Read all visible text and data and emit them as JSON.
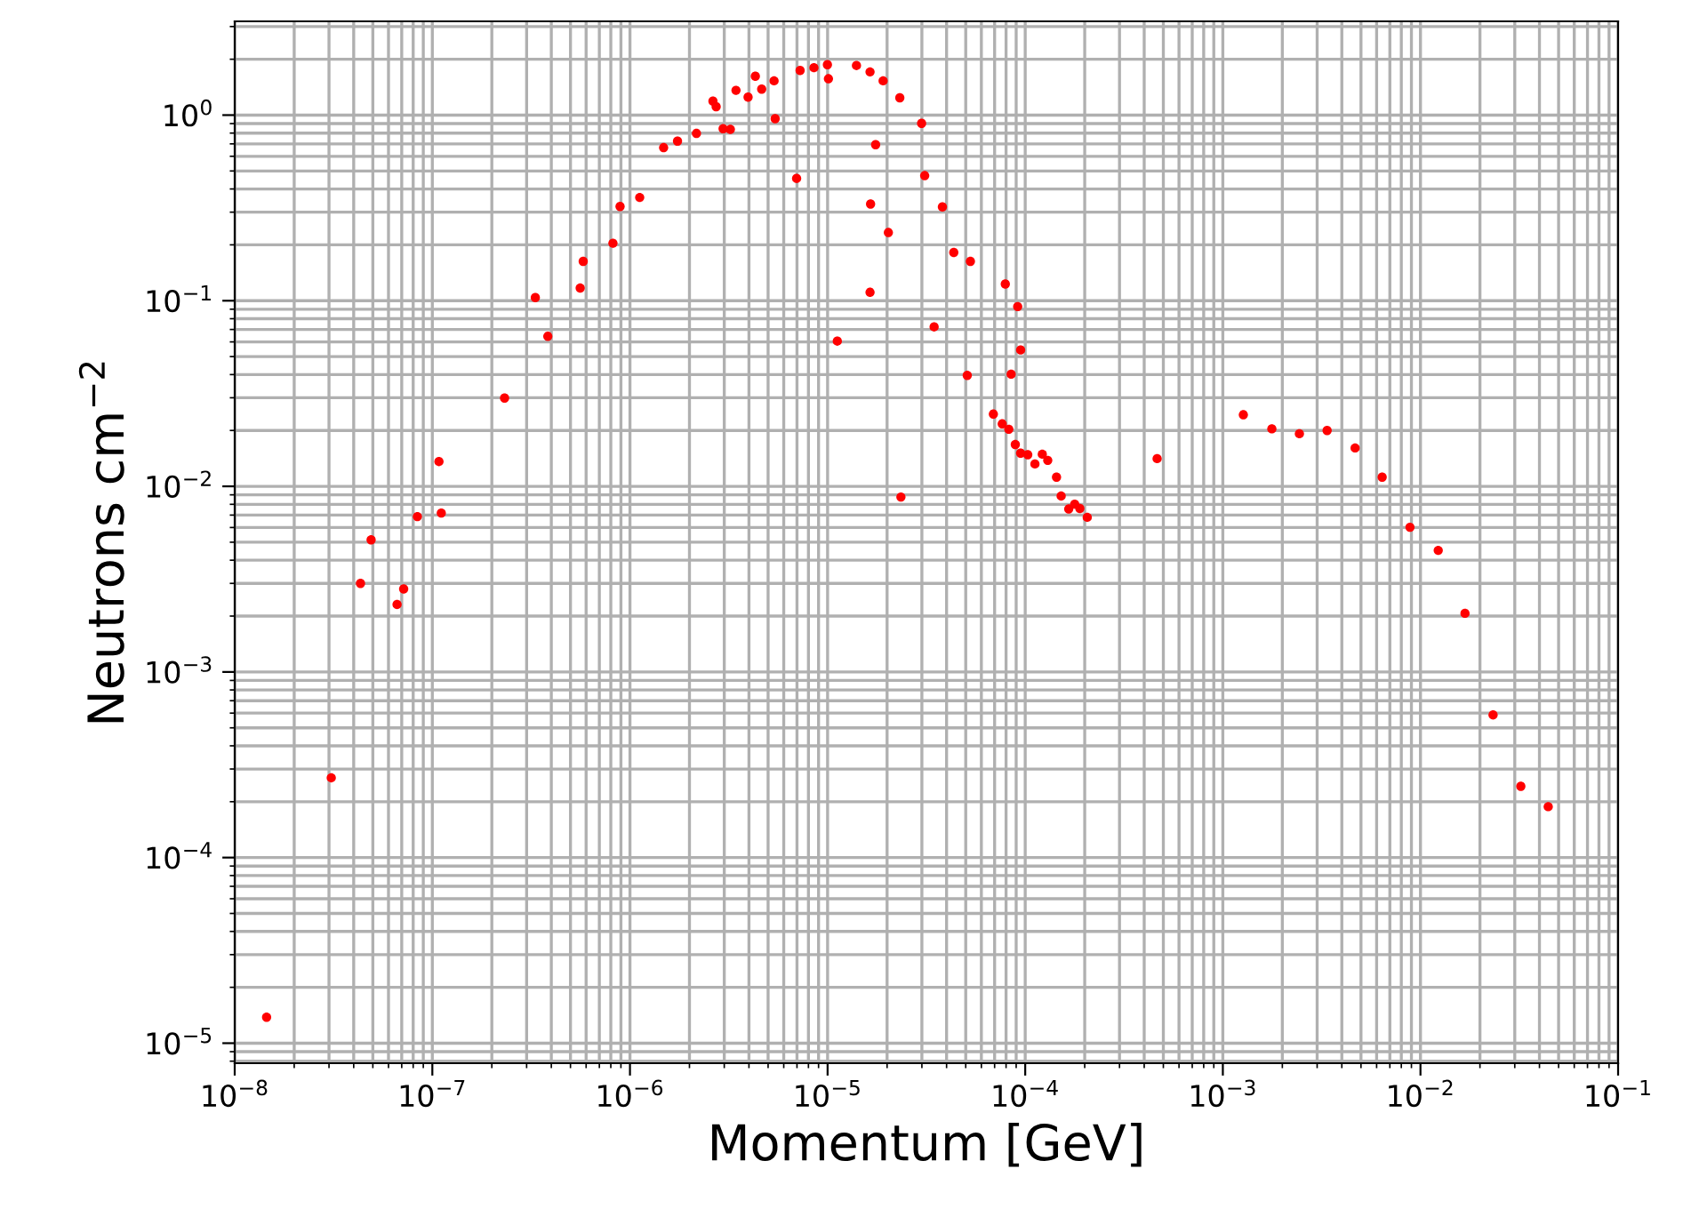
{
  "chart_data": {
    "type": "scatter",
    "xlabel": "Momentum [GeV]",
    "ylabel": "Neutrons cm$^{−2}$",
    "log": "xy",
    "grid": true,
    "marker": "circle",
    "xlim": [
      1e-08,
      0.1
    ],
    "ylim": [
      7.8e-06,
      3.2
    ],
    "xticks": [
      {
        "value": 1e-08,
        "label": "10$^{−8}$"
      },
      {
        "value": 1e-07,
        "label": "10$^{−7}$"
      },
      {
        "value": 1e-06,
        "label": "10$^{−6}$"
      },
      {
        "value": 1e-05,
        "label": "10$^{−5}$"
      },
      {
        "value": 0.0001,
        "label": "10$^{−4}$"
      },
      {
        "value": 0.001,
        "label": "10$^{−3}$"
      },
      {
        "value": 0.01,
        "label": "10$^{−2}$"
      },
      {
        "value": 0.1,
        "label": "10$^{−1}$"
      }
    ],
    "yticks": [
      {
        "value": 1e-05,
        "label": "10$^{−5}$"
      },
      {
        "value": 0.0001,
        "label": "10$^{−4}$"
      },
      {
        "value": 0.001,
        "label": "10$^{−3}$"
      },
      {
        "value": 0.01,
        "label": "10$^{−2}$"
      },
      {
        "value": 0.1,
        "label": "10$^{−1}$"
      },
      {
        "value": 1,
        "label": "10$^{0}$"
      }
    ],
    "series": [
      {
        "color": "#ff0000",
        "x": [
          1.45e-08,
          3.08e-08,
          4.33e-08,
          4.9e-08,
          6.63e-08,
          7.16e-08,
          8.4e-08,
          1.08e-07,
          1.11e-07,
          2.32e-07,
          3.32e-07,
          3.84e-07,
          5.6e-07,
          5.8e-07,
          8.2e-07,
          8.91e-07,
          1.12e-06,
          1.48e-06,
          1.74e-06,
          2.17e-06,
          2.63e-06,
          2.73e-06,
          2.96e-06,
          3.22e-06,
          3.44e-06,
          3.96e-06,
          4.31e-06,
          4.64e-06,
          5.36e-06,
          5.43e-06,
          6.97e-06,
          7.26e-06,
          8.53e-06,
          9.98e-06,
          1.01e-05,
          1.12e-05,
          1.4e-05,
          1.64e-05,
          1.91e-05,
          2.32e-05,
          2.99e-05,
          1.75e-05,
          1.65e-05,
          2.03e-05,
          1.64e-05,
          3.1e-05,
          3.81e-05,
          4.35e-05,
          5.28e-05,
          3.46e-05,
          7.93e-05,
          9.16e-05,
          9.48e-05,
          5.09e-05,
          8.49e-05,
          2.35e-05,
          6.9e-05,
          7.65e-05,
          8.26e-05,
          8.91e-05,
          9.48e-05,
          0.000103,
          0.000112,
          0.000122,
          0.00013,
          0.000144,
          0.000152,
          0.000166,
          0.000178,
          0.000189,
          0.000206,
          0.000465,
          0.00127,
          0.00177,
          0.00244,
          0.00337,
          0.00467,
          0.0064,
          0.00885,
          0.0123,
          0.0168,
          0.0233,
          0.0322,
          0.0443
        ],
        "values": [
          1.38e-05,
          0.000269,
          0.003,
          0.00515,
          0.00231,
          0.0028,
          0.00687,
          0.0136,
          0.00718,
          0.0299,
          0.104,
          0.0643,
          0.117,
          0.163,
          0.204,
          0.322,
          0.36,
          0.668,
          0.724,
          0.797,
          1.19,
          1.11,
          0.845,
          0.838,
          1.36,
          1.25,
          1.62,
          1.38,
          1.53,
          0.957,
          0.456,
          1.74,
          1.8,
          1.87,
          1.57,
          0.0606,
          1.85,
          1.71,
          1.53,
          1.24,
          0.903,
          0.693,
          0.332,
          0.233,
          0.111,
          0.472,
          0.32,
          0.182,
          0.163,
          0.0723,
          0.123,
          0.093,
          0.0543,
          0.0396,
          0.0402,
          0.00876,
          0.0245,
          0.0217,
          0.0203,
          0.0168,
          0.0151,
          0.0148,
          0.0132,
          0.0149,
          0.0138,
          0.0112,
          0.00887,
          0.00755,
          0.00802,
          0.0076,
          0.00681,
          0.0141,
          0.0243,
          0.0204,
          0.0192,
          0.02,
          0.0161,
          0.0112,
          0.00602,
          0.00452,
          0.00207,
          0.000587,
          0.000242,
          0.000188
        ]
      }
    ]
  }
}
